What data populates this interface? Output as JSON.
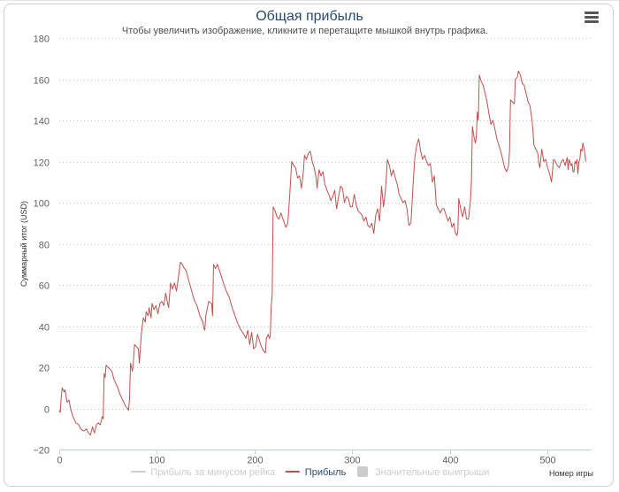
{
  "title": "Общая прибыль",
  "subtitle": "Чтобы увеличить изображение, кликните и перетащите мышкой внутрь графика.",
  "menu_icon": "hamburger-menu-icon",
  "colors": {
    "profit": "#c0504d",
    "grid": "#c0c0c0",
    "title": "#274b6d",
    "legend_inactive": "#cccccc"
  },
  "chart_data": {
    "type": "line",
    "title": "Общая прибыль",
    "subtitle": "Чтобы увеличить изображение, кликните и перетащите мышкой внутрь графика.",
    "xlabel": "Номер игры",
    "ylabel": "Суммарный итог (USD)",
    "xlim": [
      0,
      545
    ],
    "ylim": [
      -20,
      180
    ],
    "x_ticks": [
      0,
      100,
      200,
      300,
      400,
      500
    ],
    "y_ticks": [
      -20,
      0,
      20,
      40,
      60,
      80,
      100,
      120,
      140,
      160,
      180
    ],
    "grid": "horizontal-dotted",
    "legend": {
      "position": "bottom-center",
      "items": [
        {
          "name": "Прибыль за минусом рейка",
          "visible": false
        },
        {
          "name": "Прибыль",
          "visible": true
        },
        {
          "name": "Значительные выигрыши",
          "visible": false
        }
      ]
    },
    "series": [
      {
        "name": "Прибыль",
        "color": "#c0504d",
        "points": [
          [
            0,
            -1
          ],
          [
            1,
            -2
          ],
          [
            2,
            5
          ],
          [
            3,
            10
          ],
          [
            5,
            8
          ],
          [
            6,
            9
          ],
          [
            8,
            3
          ],
          [
            10,
            4
          ],
          [
            12,
            -1
          ],
          [
            14,
            -4
          ],
          [
            17,
            -7
          ],
          [
            20,
            -8
          ],
          [
            22,
            -10
          ],
          [
            25,
            -11
          ],
          [
            28,
            -10
          ],
          [
            30,
            -12
          ],
          [
            32,
            -13
          ],
          [
            34,
            -9
          ],
          [
            36,
            -12
          ],
          [
            38,
            -8
          ],
          [
            40,
            -7
          ],
          [
            42,
            -8
          ],
          [
            44,
            -4
          ],
          [
            45,
            -5
          ],
          [
            46,
            17
          ],
          [
            47,
            15
          ],
          [
            48,
            21
          ],
          [
            50,
            20
          ],
          [
            52,
            19
          ],
          [
            54,
            18
          ],
          [
            56,
            14
          ],
          [
            58,
            12
          ],
          [
            60,
            10
          ],
          [
            62,
            7
          ],
          [
            64,
            5
          ],
          [
            66,
            3
          ],
          [
            68,
            1
          ],
          [
            70,
            0
          ],
          [
            71,
            -1
          ],
          [
            72,
            5
          ],
          [
            73,
            22
          ],
          [
            75,
            18
          ],
          [
            76,
            23
          ],
          [
            77,
            31
          ],
          [
            79,
            30
          ],
          [
            81,
            29
          ],
          [
            82,
            22
          ],
          [
            84,
            36
          ],
          [
            86,
            44
          ],
          [
            88,
            42
          ],
          [
            89,
            47
          ],
          [
            91,
            45
          ],
          [
            92,
            49
          ],
          [
            94,
            44
          ],
          [
            95,
            51
          ],
          [
            97,
            48
          ],
          [
            99,
            50
          ],
          [
            101,
            46
          ],
          [
            103,
            51
          ],
          [
            105,
            52
          ],
          [
            107,
            50
          ],
          [
            109,
            56
          ],
          [
            111,
            51
          ],
          [
            112,
            49
          ],
          [
            114,
            61
          ],
          [
            116,
            58
          ],
          [
            118,
            61
          ],
          [
            120,
            57
          ],
          [
            122,
            64
          ],
          [
            124,
            71
          ],
          [
            126,
            70
          ],
          [
            128,
            68
          ],
          [
            130,
            67
          ],
          [
            132,
            63
          ],
          [
            135,
            58
          ],
          [
            138,
            53
          ],
          [
            141,
            50
          ],
          [
            144,
            45
          ],
          [
            147,
            42
          ],
          [
            148,
            39
          ],
          [
            149,
            38
          ],
          [
            150,
            45
          ],
          [
            153,
            52
          ],
          [
            156,
            51
          ],
          [
            157,
            45
          ],
          [
            158,
            70
          ],
          [
            160,
            68
          ],
          [
            162,
            70
          ],
          [
            164,
            67
          ],
          [
            166,
            64
          ],
          [
            168,
            61
          ],
          [
            171,
            57
          ],
          [
            174,
            54
          ],
          [
            177,
            49
          ],
          [
            180,
            45
          ],
          [
            183,
            41
          ],
          [
            186,
            38
          ],
          [
            189,
            36
          ],
          [
            191,
            34
          ],
          [
            193,
            38
          ],
          [
            195,
            31
          ],
          [
            197,
            37
          ],
          [
            199,
            29
          ],
          [
            201,
            30
          ],
          [
            203,
            36
          ],
          [
            205,
            33
          ],
          [
            207,
            30
          ],
          [
            209,
            28
          ],
          [
            211,
            27
          ],
          [
            212,
            34
          ],
          [
            214,
            36
          ],
          [
            215,
            34
          ],
          [
            216,
            35
          ],
          [
            217,
            50
          ],
          [
            218,
            55
          ],
          [
            219,
            98
          ],
          [
            221,
            96
          ],
          [
            223,
            93
          ],
          [
            225,
            92
          ],
          [
            227,
            95
          ],
          [
            229,
            92
          ],
          [
            232,
            88
          ],
          [
            234,
            90
          ],
          [
            236,
            104
          ],
          [
            238,
            120
          ],
          [
            240,
            118
          ],
          [
            242,
            117
          ],
          [
            244,
            112
          ],
          [
            246,
            113
          ],
          [
            248,
            107
          ],
          [
            250,
            115
          ],
          [
            251,
            123
          ],
          [
            253,
            121
          ],
          [
            255,
            124
          ],
          [
            257,
            125
          ],
          [
            259,
            120
          ],
          [
            261,
            117
          ],
          [
            263,
            112
          ],
          [
            264,
            107
          ],
          [
            266,
            116
          ],
          [
            268,
            113
          ],
          [
            270,
            115
          ],
          [
            272,
            109
          ],
          [
            274,
            106
          ],
          [
            276,
            104
          ],
          [
            278,
            101
          ],
          [
            280,
            103
          ],
          [
            282,
            106
          ],
          [
            284,
            97
          ],
          [
            286,
            103
          ],
          [
            288,
            108
          ],
          [
            290,
            107
          ],
          [
            292,
            100
          ],
          [
            294,
            103
          ],
          [
            296,
            102
          ],
          [
            298,
            98
          ],
          [
            300,
            98
          ],
          [
            302,
            104
          ],
          [
            304,
            99
          ],
          [
            306,
            96
          ],
          [
            308,
            95
          ],
          [
            310,
            94
          ],
          [
            312,
            91
          ],
          [
            314,
            93
          ],
          [
            316,
            89
          ],
          [
            318,
            88
          ],
          [
            320,
            90
          ],
          [
            322,
            85
          ],
          [
            324,
            94
          ],
          [
            326,
            97
          ],
          [
            328,
            91
          ],
          [
            330,
            108
          ],
          [
            332,
            98
          ],
          [
            334,
            106
          ],
          [
            336,
            121
          ],
          [
            338,
            118
          ],
          [
            340,
            113
          ],
          [
            342,
            116
          ],
          [
            344,
            112
          ],
          [
            346,
            109
          ],
          [
            348,
            104
          ],
          [
            350,
            102
          ],
          [
            352,
            100
          ],
          [
            354,
            101
          ],
          [
            356,
            97
          ],
          [
            358,
            89
          ],
          [
            360,
            90
          ],
          [
            362,
            107
          ],
          [
            364,
            122
          ],
          [
            366,
            128
          ],
          [
            368,
            131
          ],
          [
            370,
            125
          ],
          [
            372,
            121
          ],
          [
            374,
            123
          ],
          [
            376,
            120
          ],
          [
            378,
            118
          ],
          [
            380,
            119
          ],
          [
            382,
            110
          ],
          [
            384,
            113
          ],
          [
            386,
            99
          ],
          [
            388,
            97
          ],
          [
            390,
            95
          ],
          [
            392,
            97
          ],
          [
            394,
            97
          ],
          [
            396,
            94
          ],
          [
            398,
            91
          ],
          [
            400,
            93
          ],
          [
            402,
            88
          ],
          [
            404,
            90
          ],
          [
            405,
            86
          ],
          [
            407,
            84
          ],
          [
            408,
            86
          ],
          [
            409,
            102
          ],
          [
            411,
            97
          ],
          [
            413,
            93
          ],
          [
            415,
            98
          ],
          [
            417,
            92
          ],
          [
            419,
            92
          ],
          [
            421,
            101
          ],
          [
            422,
            110
          ],
          [
            423,
            137
          ],
          [
            425,
            131
          ],
          [
            426,
            129
          ],
          [
            427,
            132
          ],
          [
            428,
            144
          ],
          [
            429,
            140
          ],
          [
            430,
            162
          ],
          [
            432,
            159
          ],
          [
            434,
            157
          ],
          [
            436,
            153
          ],
          [
            438,
            149
          ],
          [
            440,
            143
          ],
          [
            442,
            138
          ],
          [
            444,
            140
          ],
          [
            446,
            136
          ],
          [
            448,
            131
          ],
          [
            450,
            128
          ],
          [
            452,
            125
          ],
          [
            454,
            121
          ],
          [
            456,
            117
          ],
          [
            458,
            115
          ],
          [
            460,
            118
          ],
          [
            461,
            125
          ],
          [
            462,
            150
          ],
          [
            464,
            149
          ],
          [
            466,
            148
          ],
          [
            467,
            160
          ],
          [
            469,
            161
          ],
          [
            470,
            164
          ],
          [
            472,
            162
          ],
          [
            474,
            158
          ],
          [
            476,
            157
          ],
          [
            478,
            153
          ],
          [
            480,
            149
          ],
          [
            482,
            147
          ],
          [
            484,
            140
          ],
          [
            485,
            135
          ],
          [
            486,
            128
          ],
          [
            488,
            126
          ],
          [
            490,
            124
          ],
          [
            491,
            119
          ],
          [
            492,
            117
          ],
          [
            494,
            126
          ],
          [
            496,
            120
          ],
          [
            498,
            121
          ],
          [
            500,
            117
          ],
          [
            502,
            114
          ],
          [
            504,
            110
          ],
          [
            506,
            121
          ],
          [
            508,
            120
          ],
          [
            510,
            118
          ],
          [
            512,
            117
          ],
          [
            514,
            120
          ],
          [
            516,
            121
          ],
          [
            518,
            118
          ],
          [
            520,
            122
          ],
          [
            521,
            116
          ],
          [
            522,
            121
          ],
          [
            524,
            118
          ],
          [
            525,
            119
          ],
          [
            526,
            115
          ],
          [
            527,
            115
          ],
          [
            528,
            120
          ],
          [
            529,
            119
          ],
          [
            530,
            121
          ],
          [
            531,
            114
          ],
          [
            532,
            120
          ],
          [
            533,
            121
          ],
          [
            534,
            126
          ],
          [
            535,
            125
          ],
          [
            536,
            129
          ],
          [
            537,
            127
          ],
          [
            538,
            124
          ],
          [
            539,
            120
          ]
        ]
      }
    ]
  }
}
